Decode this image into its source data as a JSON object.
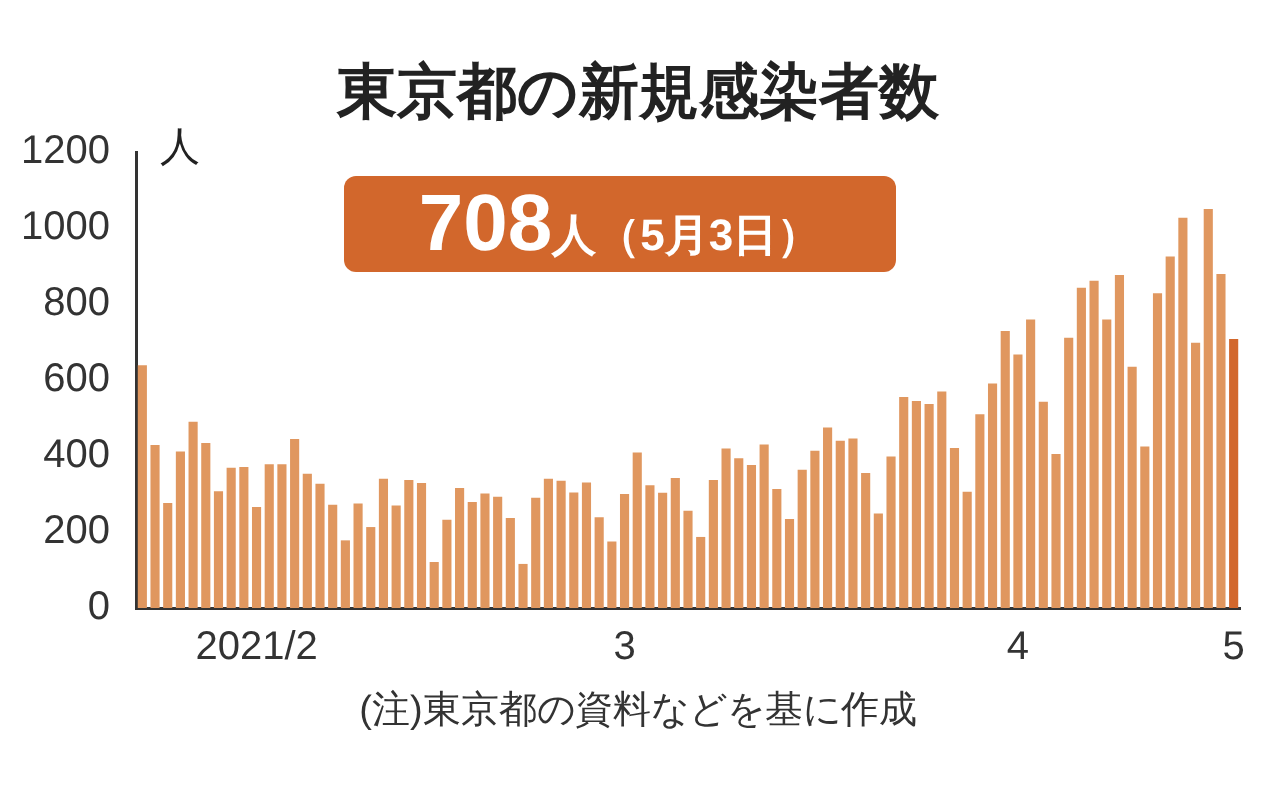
{
  "chart_data": {
    "type": "bar",
    "title": "東京都の新規感染者数",
    "ylabel": "人",
    "categories": [
      null,
      null,
      null,
      null,
      null,
      null,
      null,
      null,
      null,
      "2021/2",
      null,
      null,
      null,
      null,
      null,
      null,
      null,
      null,
      null,
      null,
      null,
      null,
      null,
      null,
      null,
      null,
      null,
      null,
      null,
      null,
      null,
      null,
      null,
      null,
      null,
      null,
      null,
      null,
      "3",
      null,
      null,
      null,
      null,
      null,
      null,
      null,
      null,
      null,
      null,
      null,
      null,
      null,
      null,
      null,
      null,
      null,
      null,
      null,
      null,
      null,
      null,
      null,
      null,
      null,
      null,
      null,
      null,
      null,
      null,
      "4",
      null,
      null,
      null,
      null,
      null,
      null,
      null,
      null,
      null,
      null,
      null,
      null,
      null,
      null,
      null,
      null,
      "5"
    ],
    "series": [
      {
        "values": [
          639,
          429,
          276,
          412,
          490,
          434,
          307,
          369,
          371,
          266,
          378,
          378,
          445,
          353,
          327,
          272,
          178,
          275,
          213,
          340,
          270,
          337,
          329,
          121,
          232,
          316,
          279,
          301,
          293,
          237,
          116,
          290,
          340,
          335,
          304,
          330,
          239,
          175,
          300,
          409,
          323,
          303,
          342,
          256,
          187,
          337,
          420,
          394,
          376,
          430,
          313,
          234,
          364,
          414,
          475,
          440,
          446,
          355,
          249,
          399,
          555,
          545,
          537,
          570,
          421,
          306,
          510,
          591,
          729,
          667,
          759,
          543,
          405,
          711,
          843,
          861,
          759,
          876,
          635,
          425,
          828,
          925,
          1027,
          698,
          1050,
          879,
          708
        ],
        "colors": [
          "#e0975f",
          "#e0975f",
          "#e0975f",
          "#e0975f",
          "#e0975f",
          "#e0975f",
          "#e0975f",
          "#e0975f",
          "#e0975f",
          "#e0975f",
          "#e0975f",
          "#e0975f",
          "#e0975f",
          "#e0975f",
          "#e0975f",
          "#e0975f",
          "#e0975f",
          "#e0975f",
          "#e0975f",
          "#e0975f",
          "#e0975f",
          "#e0975f",
          "#e0975f",
          "#e0975f",
          "#e0975f",
          "#e0975f",
          "#e0975f",
          "#e0975f",
          "#e0975f",
          "#e0975f",
          "#e0975f",
          "#e0975f",
          "#e0975f",
          "#e0975f",
          "#e0975f",
          "#e0975f",
          "#e0975f",
          "#e0975f",
          "#e0975f",
          "#e0975f",
          "#e0975f",
          "#e0975f",
          "#e0975f",
          "#e0975f",
          "#e0975f",
          "#e0975f",
          "#e0975f",
          "#e0975f",
          "#e0975f",
          "#e0975f",
          "#e0975f",
          "#e0975f",
          "#e0975f",
          "#e0975f",
          "#e0975f",
          "#e0975f",
          "#e0975f",
          "#e0975f",
          "#e0975f",
          "#e0975f",
          "#e0975f",
          "#e0975f",
          "#e0975f",
          "#e0975f",
          "#e0975f",
          "#e0975f",
          "#e0975f",
          "#e0975f",
          "#e0975f",
          "#e0975f",
          "#e0975f",
          "#e0975f",
          "#e0975f",
          "#e0975f",
          "#e0975f",
          "#e0975f",
          "#e0975f",
          "#e0975f",
          "#e0975f",
          "#e0975f",
          "#e0975f",
          "#e0975f",
          "#e0975f",
          "#e0975f",
          "#e0975f",
          "#e0975f",
          "#d2672c"
        ]
      }
    ],
    "ylim": [
      0,
      1200
    ],
    "yticks": [
      0,
      200,
      400,
      600,
      800,
      1000,
      1200
    ],
    "grid": false,
    "legend": false,
    "annotations": [
      "708人（5月3日）",
      "(注)東京都の資料などを基に作成"
    ]
  }
}
